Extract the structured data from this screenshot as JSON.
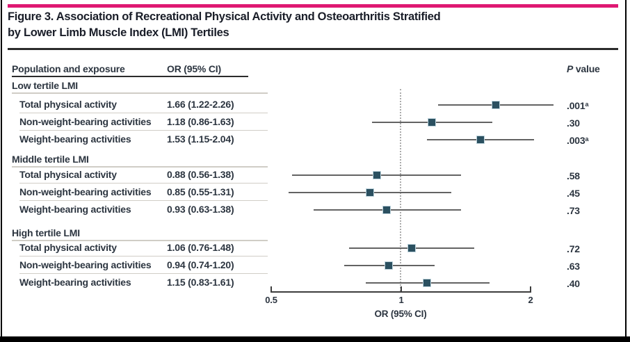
{
  "figure": {
    "title_line1": "Figure 3. Association of Recreational Physical Activity and Osteoarthritis Stratified",
    "title_line2": "by Lower Limb Muscle Index (LMI) Tertiles",
    "accent_color": "#df1872"
  },
  "table": {
    "col_population": "Population and exposure",
    "col_or": "OR (95% CI)",
    "col_p_italic": "P",
    "col_p_rest": " value"
  },
  "axis": {
    "tick_labels": [
      "0.5",
      "1",
      "2"
    ],
    "label": "OR (95% CI)"
  },
  "chart_data": {
    "type": "forest",
    "x_scale": "log2",
    "xlabel": "OR (95% CI)",
    "x_ticks": [
      0.5,
      1,
      2
    ],
    "xlim": [
      0.5,
      2
    ],
    "marker_color": "#2b5060",
    "reference_line": 1,
    "groups": [
      {
        "label": "Low tertile LMI",
        "rows": [
          {
            "label": "Total physical activity",
            "or_text": "1.66 (1.22-2.26)",
            "or": 1.66,
            "lo": 1.22,
            "hi": 2.26,
            "p": ".001",
            "p_sup": "a"
          },
          {
            "label": "Non-weight-bearing activities",
            "or_text": "1.18 (0.86-1.63)",
            "or": 1.18,
            "lo": 0.86,
            "hi": 1.63,
            "p": ".30",
            "p_sup": ""
          },
          {
            "label": "Weight-bearing activities",
            "or_text": "1.53 (1.15-2.04)",
            "or": 1.53,
            "lo": 1.15,
            "hi": 2.04,
            "p": ".003",
            "p_sup": "a"
          }
        ]
      },
      {
        "label": "Middle tertile LMI",
        "rows": [
          {
            "label": "Total physical activity",
            "or_text": "0.88 (0.56-1.38)",
            "or": 0.88,
            "lo": 0.56,
            "hi": 1.38,
            "p": ".58",
            "p_sup": ""
          },
          {
            "label": "Non-weight-bearing activities",
            "or_text": "0.85 (0.55-1.31)",
            "or": 0.85,
            "lo": 0.55,
            "hi": 1.31,
            "p": ".45",
            "p_sup": ""
          },
          {
            "label": "Weight-bearing activities",
            "or_text": "0.93 (0.63-1.38)",
            "or": 0.93,
            "lo": 0.63,
            "hi": 1.38,
            "p": ".73",
            "p_sup": ""
          }
        ]
      },
      {
        "label": "High tertile LMI",
        "rows": [
          {
            "label": "Total physical activity",
            "or_text": "1.06 (0.76-1.48)",
            "or": 1.06,
            "lo": 0.76,
            "hi": 1.48,
            "p": ".72",
            "p_sup": ""
          },
          {
            "label": "Non-weight-bearing activities",
            "or_text": "0.94 (0.74-1.20)",
            "or": 0.94,
            "lo": 0.74,
            "hi": 1.2,
            "p": ".63",
            "p_sup": ""
          },
          {
            "label": "Weight-bearing activities",
            "or_text": "1.15 (0.83-1.61)",
            "or": 1.15,
            "lo": 0.83,
            "hi": 1.61,
            "p": ".40",
            "p_sup": ""
          }
        ]
      }
    ]
  }
}
